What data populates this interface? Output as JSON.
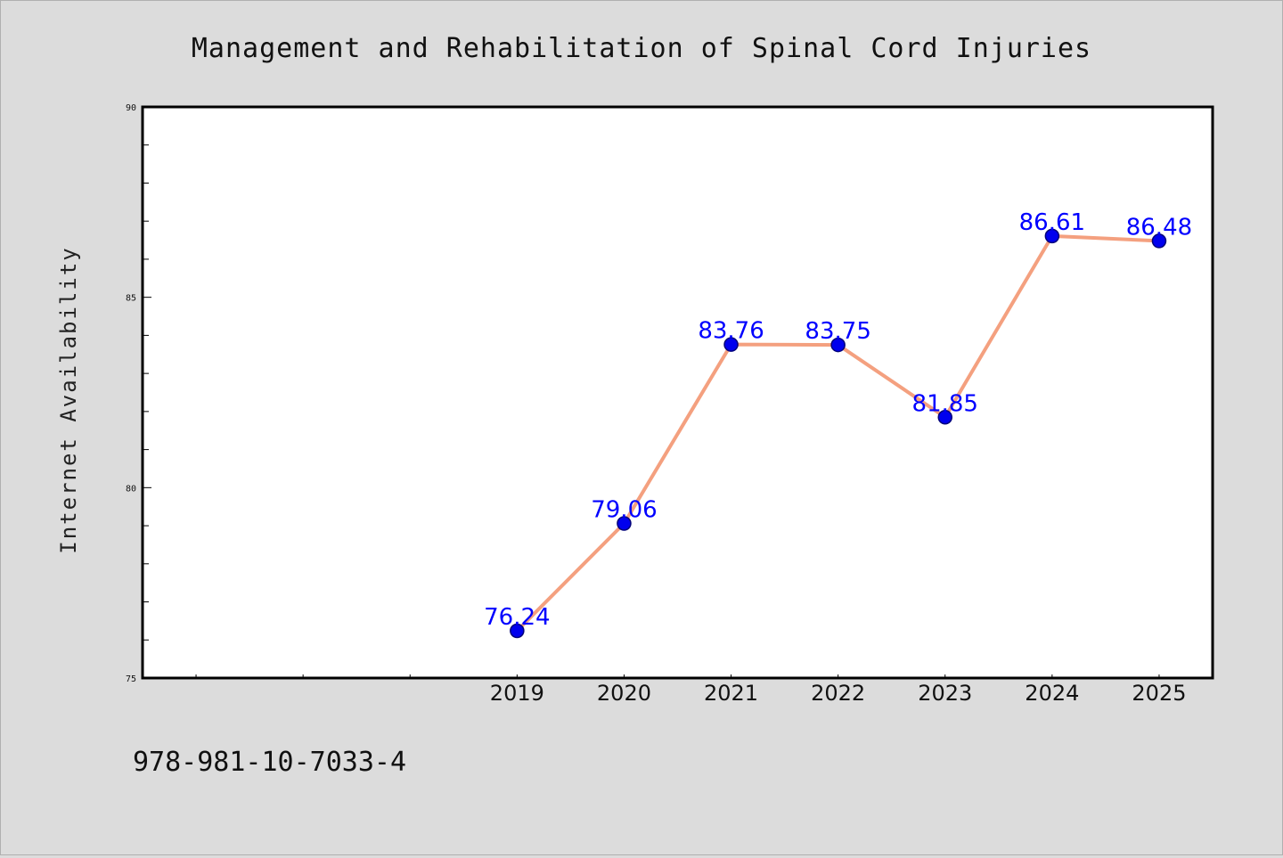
{
  "chart_data": {
    "type": "line",
    "title": "Management and Rehabilitation of Spinal Cord Injuries",
    "xlabel": "",
    "ylabel": "Internet Availability",
    "categories": [
      "2019",
      "2020",
      "2021",
      "2022",
      "2023",
      "2024",
      "2025"
    ],
    "x_axis_slots": 10,
    "x_first_category_slot": 3,
    "series": [
      {
        "values": [
          76.24,
          79.06,
          83.76,
          83.75,
          81.85,
          86.61,
          86.48
        ],
        "value_labels": [
          "76.24",
          "79.06",
          "83.76",
          "83.75",
          "81.85",
          "86.61",
          "86.48"
        ]
      }
    ],
    "ylim": [
      75,
      90
    ],
    "yticks": [
      "75",
      "80",
      "85",
      "90"
    ],
    "grid": false,
    "legend": "none",
    "colors": {
      "line": "#f4a07f",
      "marker": "#0000ee",
      "marker_edge": "#00007a",
      "value_label": "#0000ff",
      "plot_bg": "#ffffff",
      "page_bg": "#dcdcdc"
    }
  },
  "footer": {
    "isbn": "978-981-10-7033-4"
  }
}
